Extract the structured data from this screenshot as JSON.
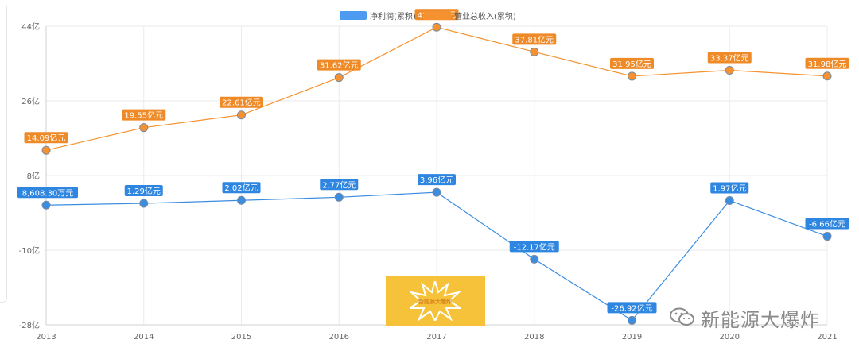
{
  "legend": [
    {
      "name": "净利润(累积)",
      "color": "#4c9bf0"
    },
    {
      "name": "营业总收入(累积)",
      "color": "#f5922f"
    }
  ],
  "watermark": {
    "text": "新能源大爆炸",
    "icon": "wechat-icon"
  },
  "logo": {
    "icon": "starburst-logo",
    "text": "新能源大爆炸"
  },
  "chart_data": {
    "type": "line",
    "x": [
      "2013",
      "2014",
      "2015",
      "2016",
      "2017",
      "2018",
      "2019",
      "2020",
      "2021"
    ],
    "ylim": [
      -28,
      44
    ],
    "yticks": [
      -28,
      -10,
      8,
      26,
      44
    ],
    "ytick_labels": [
      "-28亿",
      "-10亿",
      "8亿",
      "26亿",
      "44亿"
    ],
    "grid": true,
    "legend_position": "top-center",
    "series": [
      {
        "name": "净利润(累积)",
        "color": "#3b8de0",
        "values": [
          0.86,
          1.29,
          2.02,
          2.77,
          3.96,
          -12.17,
          -26.92,
          1.97,
          -6.66
        ],
        "labels": [
          "8,608.30万元",
          "1.29亿元",
          "2.02亿元",
          "2.77亿元",
          "3.96亿元",
          "-12.17亿元",
          "-26.92亿元",
          "1.97亿元",
          "-6.66亿元"
        ]
      },
      {
        "name": "营业总收入(累积)",
        "color": "#f5922f",
        "values": [
          14.09,
          19.55,
          22.61,
          31.62,
          43.76,
          37.81,
          31.95,
          33.37,
          31.98
        ],
        "labels": [
          "14.09亿元",
          "19.55亿元",
          "22.61亿元",
          "31.62亿元",
          "43.76亿元",
          "37.81亿元",
          "31.95亿元",
          "33.37亿元",
          "31.98亿元"
        ]
      }
    ]
  }
}
